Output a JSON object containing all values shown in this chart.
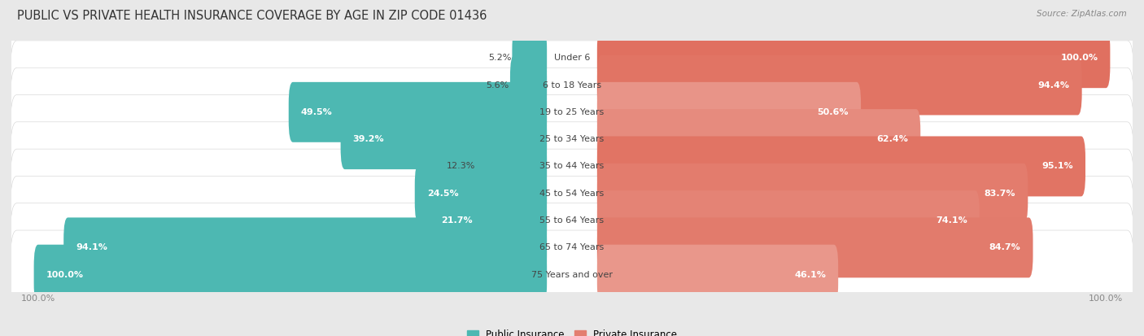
{
  "title": "PUBLIC VS PRIVATE HEALTH INSURANCE COVERAGE BY AGE IN ZIP CODE 01436",
  "source": "Source: ZipAtlas.com",
  "categories": [
    "Under 6",
    "6 to 18 Years",
    "19 to 25 Years",
    "25 to 34 Years",
    "35 to 44 Years",
    "45 to 54 Years",
    "55 to 64 Years",
    "65 to 74 Years",
    "75 Years and over"
  ],
  "public_values": [
    5.2,
    5.6,
    49.5,
    39.2,
    12.3,
    24.5,
    21.7,
    94.1,
    100.0
  ],
  "private_values": [
    100.0,
    94.4,
    50.6,
    62.4,
    95.1,
    83.7,
    74.1,
    84.7,
    46.1
  ],
  "public_color": "#4db8b2",
  "private_color_dark": "#e07060",
  "private_color_light": "#f0b8b0",
  "bg_color": "#e8e8e8",
  "row_bg": "#f8f8f8",
  "title_fontsize": 10.5,
  "label_fontsize": 8.0,
  "value_fontsize": 8.0,
  "tick_fontsize": 8,
  "legend_public": "Public Insurance",
  "legend_private": "Private Insurance"
}
